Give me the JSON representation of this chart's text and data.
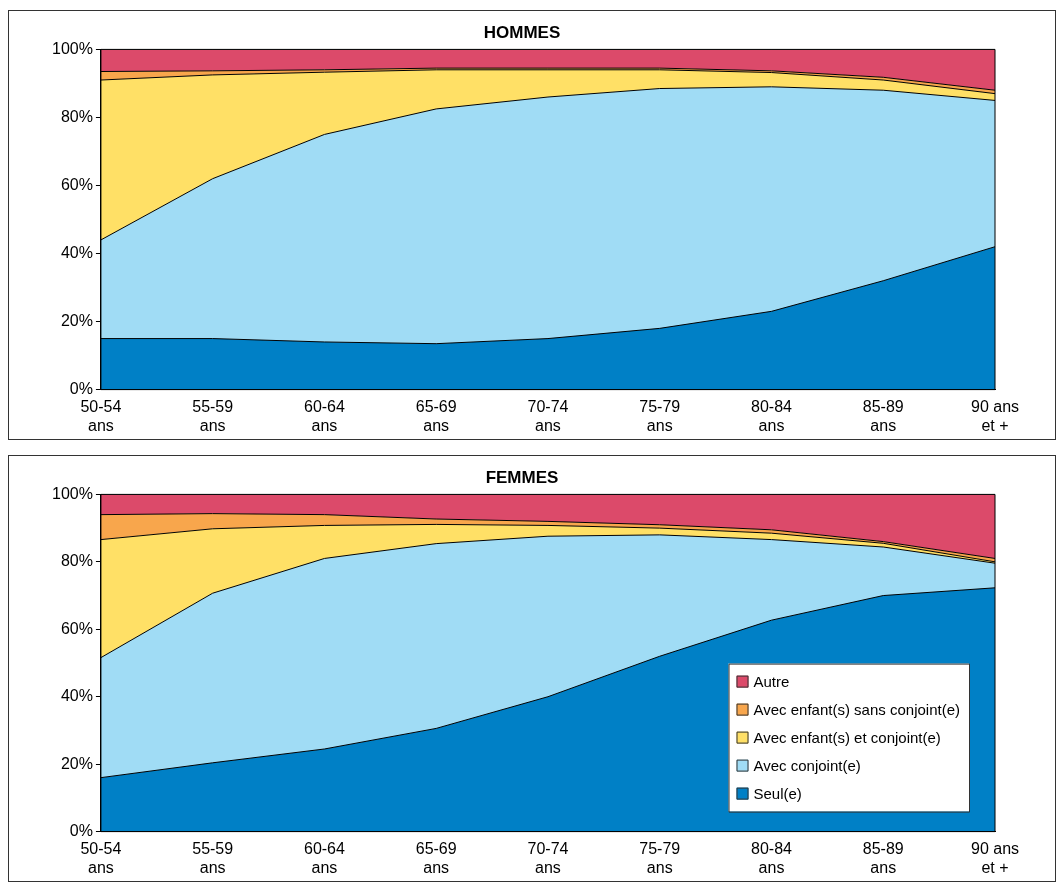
{
  "chart_data": [
    {
      "type": "area",
      "title": "HOMMES",
      "stacked": true,
      "legend": false,
      "grid": false,
      "marker": "none",
      "categories": [
        "50-54\nans",
        "55-59\nans",
        "60-64\nans",
        "65-69\nans",
        "70-74\nans",
        "75-79\nans",
        "80-84\nans",
        "85-89\nans",
        "90 ans\net +"
      ],
      "ylim": [
        0,
        100
      ],
      "yticks": [
        {
          "value": 0,
          "label": "0%"
        },
        {
          "value": 20,
          "label": "20%"
        },
        {
          "value": 40,
          "label": "40%"
        },
        {
          "value": 60,
          "label": "60%"
        },
        {
          "value": 80,
          "label": "80%"
        },
        {
          "value": 100,
          "label": "100%"
        }
      ],
      "series": [
        {
          "color": "#0080c6",
          "values": [
            15,
            15,
            14,
            13.5,
            15,
            18,
            23,
            32,
            42
          ]
        },
        {
          "color": "#a0dcf5",
          "values": [
            29,
            47,
            61,
            69,
            71,
            70.5,
            66,
            56,
            43
          ]
        },
        {
          "color": "#ffe066",
          "values": [
            47,
            30.5,
            18.3,
            11.5,
            8,
            5.5,
            4.2,
            3,
            2
          ]
        },
        {
          "color": "#f8a64c",
          "values": [
            2.5,
            1.2,
            0.7,
            0.5,
            0.5,
            0.5,
            0.5,
            0.8,
            1
          ]
        },
        {
          "color": "#dc4a6a",
          "values": [
            6.5,
            6.3,
            6,
            5.5,
            5.5,
            5.5,
            6.3,
            8.2,
            12
          ]
        }
      ]
    },
    {
      "type": "area",
      "title": "FEMMES",
      "stacked": true,
      "legend": "bottom right",
      "grid": false,
      "marker": "none",
      "categories": [
        "50-54\nans",
        "55-59\nans",
        "60-64\nans",
        "65-69\nans",
        "70-74\nans",
        "75-79\nans",
        "80-84\nans",
        "85-89\nans",
        "90 ans\net +"
      ],
      "ylim": [
        0,
        100
      ],
      "yticks": [
        {
          "value": 0,
          "label": "0%"
        },
        {
          "value": 20,
          "label": "20%"
        },
        {
          "value": 40,
          "label": "40%"
        },
        {
          "value": 60,
          "label": "60%"
        },
        {
          "value": 80,
          "label": "80%"
        },
        {
          "value": 100,
          "label": "100%"
        }
      ],
      "series": [
        {
          "name": "Seul(e)",
          "color": "#0080c6",
          "values": [
            16,
            20.4,
            24.5,
            30.6,
            40,
            52,
            62.7,
            70,
            72.3
          ]
        },
        {
          "name": "Avec conjoint(e)",
          "color": "#a0dcf5",
          "values": [
            35.6,
            50.3,
            56.5,
            54.8,
            47.6,
            36,
            23.9,
            14.4,
            7.3
          ]
        },
        {
          "name": "Avec enfant(s) et conjoint(e)",
          "color": "#ffe066",
          "values": [
            35,
            19.1,
            9.8,
            5.7,
            3.2,
            2,
            1.9,
            1.1,
            0.4
          ]
        },
        {
          "name": "Avec enfant(s) sans conjoint(e)",
          "color": "#f8a64c",
          "values": [
            7.4,
            4.5,
            3.2,
            1.6,
            1.2,
            1,
            1,
            0.5,
            1
          ]
        },
        {
          "name": "Autre",
          "color": "#dc4a6a",
          "values": [
            6,
            5.7,
            6,
            7.3,
            8,
            9,
            10.5,
            14,
            19
          ]
        }
      ]
    }
  ]
}
